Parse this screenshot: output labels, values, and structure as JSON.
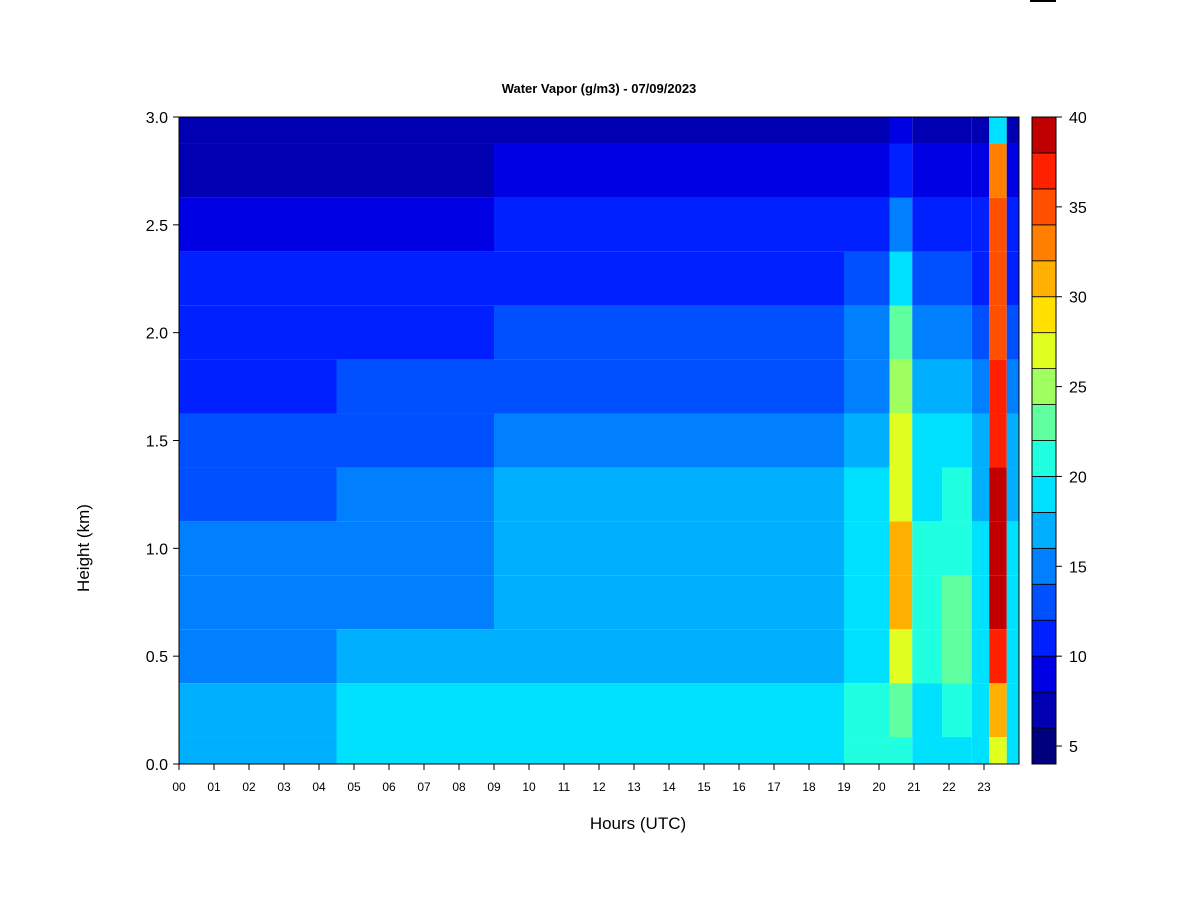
{
  "chart_data": {
    "type": "heatmap",
    "title": "Water Vapor (g/m3) - 07/09/2023",
    "xlabel": "Hours (UTC)",
    "ylabel": "Height (km)",
    "xlim": [
      0,
      24
    ],
    "ylim": [
      0.0,
      3.0
    ],
    "x_ticks": [
      "00",
      "01",
      "02",
      "03",
      "04",
      "05",
      "06",
      "07",
      "08",
      "09",
      "10",
      "11",
      "12",
      "13",
      "14",
      "15",
      "16",
      "17",
      "18",
      "19",
      "20",
      "21",
      "22",
      "23"
    ],
    "y_ticks": [
      "0.0",
      "0.5",
      "1.0",
      "1.5",
      "2.0",
      "2.5",
      "3.0"
    ],
    "colorbar": {
      "range": [
        4,
        40
      ],
      "step": 2,
      "tick_labels": [
        "5",
        "10",
        "15",
        "20",
        "25",
        "30",
        "35",
        "40"
      ],
      "colors": [
        "#00007f",
        "#0000b2",
        "#0000e5",
        "#0020ff",
        "#0050ff",
        "#0080ff",
        "#00b0ff",
        "#00e0ff",
        "#20ffe0",
        "#60ffa0",
        "#a0ff60",
        "#e0ff20",
        "#ffe000",
        "#ffb000",
        "#ff8000",
        "#ff5000",
        "#ff2000",
        "#c00000"
      ]
    },
    "heights_km": [
      0.0,
      0.25,
      0.5,
      0.75,
      1.0,
      1.25,
      1.5,
      1.75,
      2.0,
      2.25,
      2.5,
      2.75,
      3.0
    ],
    "series": [
      {
        "hours": [
          0,
          3,
          6,
          12,
          18,
          20,
          20.6,
          21.3,
          22.3,
          23,
          23.3,
          24
        ],
        "profiles": [
          [
            17,
            17,
            14,
            14,
            14,
            13,
            13,
            11,
            11,
            11,
            8,
            7,
            6
          ],
          [
            17,
            17,
            14,
            14,
            14,
            13,
            12,
            11,
            10,
            10,
            8,
            7,
            6
          ],
          [
            19,
            18,
            17,
            15,
            15,
            14,
            13,
            12,
            11,
            10,
            9,
            7,
            6
          ],
          [
            19,
            19,
            17,
            17,
            16,
            16,
            15,
            13,
            12,
            11,
            10,
            8,
            7
          ],
          [
            18,
            18,
            17,
            17,
            16,
            16,
            15,
            13,
            12,
            11,
            10,
            8,
            7
          ],
          [
            20,
            20,
            19,
            19,
            18,
            18,
            17,
            15,
            14,
            12,
            10,
            8,
            7
          ],
          [
            21,
            22,
            26,
            30,
            31,
            27,
            26,
            25,
            22,
            18,
            14,
            10,
            8
          ],
          [
            18,
            19,
            20,
            21,
            20,
            19,
            18,
            16,
            14,
            12,
            10,
            8,
            7
          ],
          [
            19,
            20,
            22,
            22,
            21,
            20,
            18,
            16,
            14,
            12,
            10,
            8,
            7
          ],
          [
            18,
            18,
            18,
            19,
            18,
            17,
            16,
            14,
            13,
            11,
            10,
            8,
            7
          ],
          [
            26,
            30,
            36,
            38,
            39,
            38,
            37,
            36,
            35,
            35,
            34,
            33,
            18
          ],
          [
            18,
            18,
            18,
            19,
            18,
            17,
            16,
            14,
            13,
            11,
            10,
            8,
            7
          ]
        ]
      }
    ]
  }
}
